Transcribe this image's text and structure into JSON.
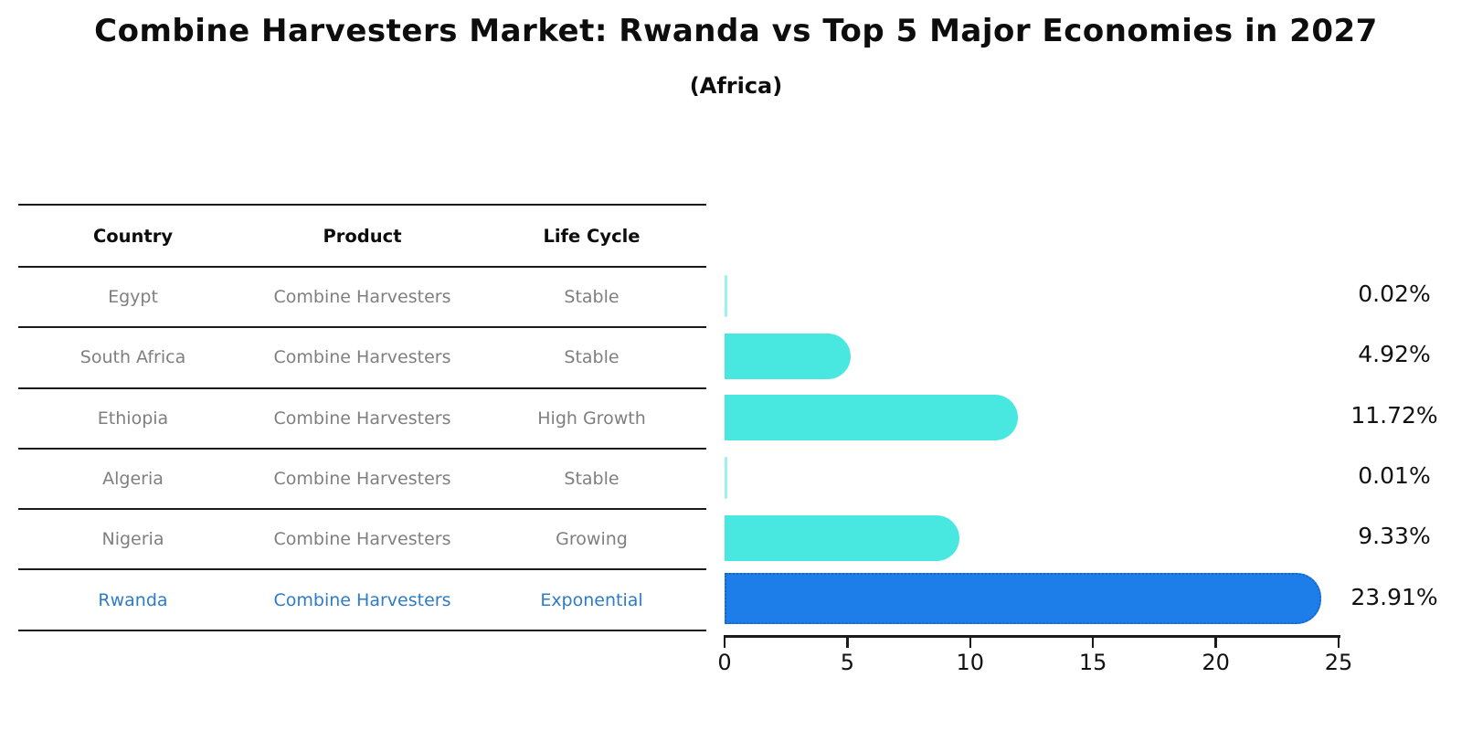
{
  "title": "Combine Harvesters Market: Rwanda vs Top 5 Major Economies in 2027",
  "subtitle": "(Africa)",
  "table": {
    "headers": [
      "Country",
      "Product",
      "Life Cycle"
    ],
    "rows": [
      {
        "country": "Egypt",
        "product": "Combine Harvesters",
        "life_cycle": "Stable",
        "highlight": false
      },
      {
        "country": "South Africa",
        "product": "Combine Harvesters",
        "life_cycle": "Stable",
        "highlight": false
      },
      {
        "country": "Ethiopia",
        "product": "Combine Harvesters",
        "life_cycle": "High Growth",
        "highlight": false
      },
      {
        "country": "Algeria",
        "product": "Combine Harvesters",
        "life_cycle": "Stable",
        "highlight": false
      },
      {
        "country": "Nigeria",
        "product": "Combine Harvesters",
        "life_cycle": "Growing",
        "highlight": false
      },
      {
        "country": "Rwanda",
        "product": "Combine Harvesters",
        "life_cycle": "Exponential",
        "highlight": true
      }
    ]
  },
  "chart_data": {
    "type": "bar",
    "orientation": "horizontal",
    "title": "Combine Harvesters Market: Rwanda vs Top 5 Major Economies in 2027 (Africa)",
    "categories": [
      "Egypt",
      "South Africa",
      "Ethiopia",
      "Algeria",
      "Nigeria",
      "Rwanda"
    ],
    "values": [
      0.02,
      4.92,
      11.72,
      0.01,
      9.33,
      23.91
    ],
    "value_labels": [
      "0.02%",
      "4.92%",
      "11.72%",
      "0.01%",
      "9.33%",
      "23.91%"
    ],
    "xlabel": "",
    "ylabel": "",
    "xlim": [
      0,
      25
    ],
    "x_ticks": [
      0,
      5,
      10,
      15,
      20,
      25
    ],
    "grid": false,
    "legend": false,
    "highlight_index": 5
  },
  "colors": {
    "bar": "#48e8e0",
    "bar_tiny": "rgba(72,232,224,0.55)",
    "highlight_fill": "#1e7ee9",
    "highlight_border": "#1565d0",
    "text_dark": "#111111",
    "text_gray": "#7f7f7f",
    "text_blue": "#2e7bc9"
  }
}
